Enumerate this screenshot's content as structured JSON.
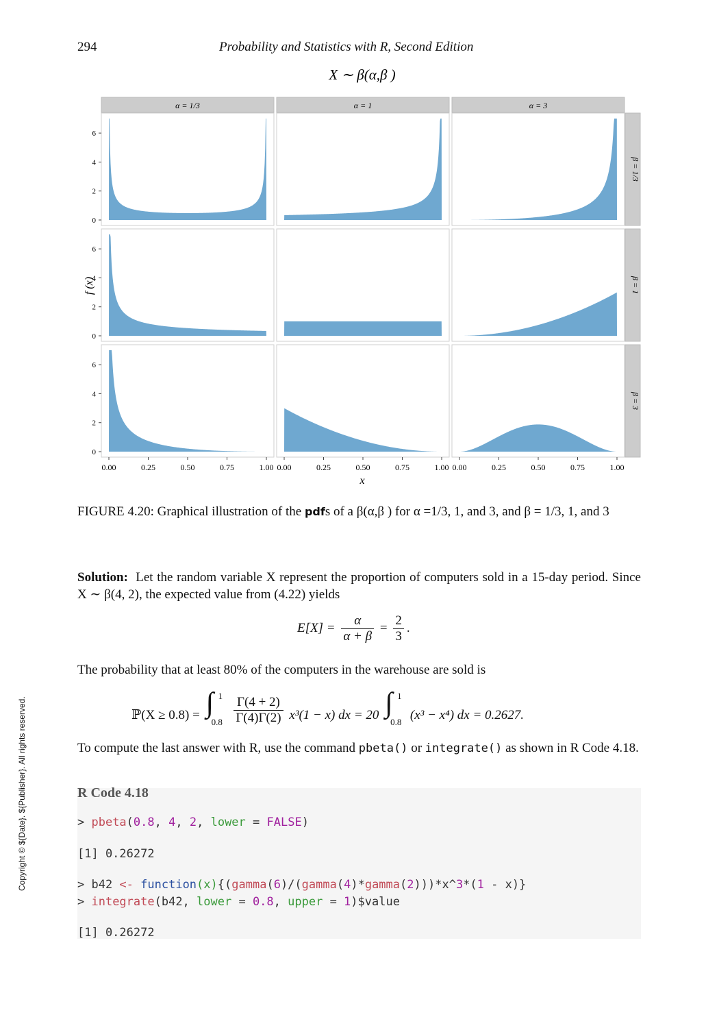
{
  "header": {
    "page_number": "294",
    "running_title": "Probability and Statistics with R, Second Edition"
  },
  "figure": {
    "title": "X ∼ β(α,β )",
    "col_strips": [
      "α = 1/3",
      "α = 1",
      "α = 3"
    ],
    "row_strips": [
      "β = 1/3",
      "β = 1",
      "β = 3"
    ],
    "xlabel": "x",
    "ylabel": "f (x)",
    "x_ticks": [
      "0.00",
      "0.25",
      "0.50",
      "0.75",
      "1.00"
    ],
    "y_ticks": [
      "0",
      "2",
      "4",
      "6"
    ],
    "fill_color": "#6fa8d0"
  },
  "chart_data": {
    "type": "area",
    "facet_rows": "beta",
    "facet_cols": "alpha",
    "alpha_values": [
      0.3333,
      1,
      3
    ],
    "beta_values": [
      0.3333,
      1,
      3
    ],
    "xlim": [
      0,
      1
    ],
    "ylim": [
      0,
      7
    ],
    "y_clip": 7,
    "x_ticks": [
      0,
      0.25,
      0.5,
      0.75,
      1
    ],
    "y_ticks": [
      0,
      2,
      4,
      6
    ]
  },
  "caption": {
    "label": "FIGURE 4.20:",
    "text_before": " Graphical illustration of the ",
    "bold_word": "pdf",
    "text_after": "s of a β(α,β ) for α =1/3, 1, and 3, and β = 1/3, 1, and 3"
  },
  "solution": {
    "label": "Solution:",
    "text": "Let the random variable X represent the proportion of computers sold in a 15-day period. Since X ∼ β(4, 2), the expected value from (4.22) yields"
  },
  "equation1": {
    "lhs": "E[X] =",
    "num1": "α",
    "den1": "α + β",
    "eq": "=",
    "num2": "2",
    "den2": "3",
    "end": "."
  },
  "probability_text": "The probability that at least 80% of the computers in the warehouse are sold is",
  "equation2": {
    "lhs": "ℙ(X ≥ 0.8) =",
    "int_upper": "1",
    "int_lower": "0.8",
    "frac_num": "Γ(4 + 2)",
    "frac_den": "Γ(4)Γ(2)",
    "integrand": "x³(1 − x) dx = 20",
    "int2_upper": "1",
    "int2_lower": "0.8",
    "integrand2": "(x³ − x⁴) dx = 0.2627."
  },
  "compute_text": {
    "before": "To compute the last answer with R, use the command ",
    "cmd1": "pbeta()",
    "middle": " or ",
    "cmd2": "integrate()",
    "after": " as shown in R Code 4.18."
  },
  "code": {
    "title": "R Code 4.18",
    "line1_prompt": "> ",
    "line1_fn": "pbeta",
    "line1_a": "(",
    "line1_n1": "0.8",
    "line1_b": ", ",
    "line1_n2": "4",
    "line1_c": ", ",
    "line1_n3": "2",
    "line1_d": ", ",
    "line1_arg": "lower",
    "line1_e": " = ",
    "line1_val": "FALSE",
    "line1_f": ")",
    "out1": "[1] 0.26272",
    "line2_prompt": "> b42 ",
    "line2_assign": "<-",
    "line2_sp": " ",
    "line2_kw": "function",
    "line2_args": "(x)",
    "line2_body_a": "{(",
    "line2_g1": "gamma",
    "line2_p1": "(",
    "line2_n1": "6",
    "line2_p2": ")/(",
    "line2_g2": "gamma",
    "line2_p3": "(",
    "line2_n2": "4",
    "line2_p4": ")*",
    "line2_g3": "gamma",
    "line2_p5": "(",
    "line2_n3": "2",
    "line2_p6": ")))*x^",
    "line2_n4": "3",
    "line2_p7": "*(",
    "line2_n5": "1",
    "line2_p8": " - x)}",
    "line3_prompt": "> ",
    "line3_fn": "integrate",
    "line3_a": "(b42, ",
    "line3_arg1": "lower",
    "line3_b": " = ",
    "line3_n1": "0.8",
    "line3_c": ", ",
    "line3_arg2": "upper",
    "line3_d": " = ",
    "line3_n2": "1",
    "line3_e": ")$value",
    "out2": "[1] 0.26272"
  },
  "copyright": "Copyright © ${Date}. ${Publisher}. All rights reserved."
}
